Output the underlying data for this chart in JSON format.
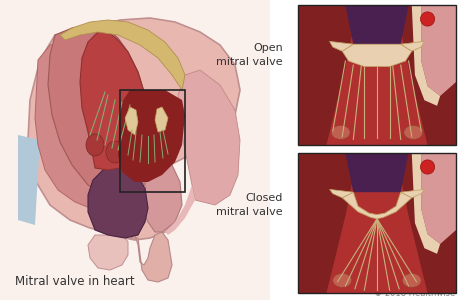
{
  "bg_color": "#ffffff",
  "title_main": "Mitral valve in heart",
  "title_open": "Open\nmitral valve",
  "title_closed": "Closed\nmitral valve",
  "copyright": "© 2018 Healthwise",
  "title_fontsize": 8.5,
  "label_fontsize": 8,
  "copyright_fontsize": 6,
  "colors": {
    "white_bg": "#ffffff",
    "light_pink_bg": "#f5ddd8",
    "blue_strip": "#a8c0d0",
    "heart_outer_pink": "#e8b8b0",
    "heart_outer_edge": "#c09090",
    "heart_muscle_red": "#c85050",
    "heart_dark_red": "#8a2828",
    "atrium_purple": "#6a3a58",
    "atrium_dark": "#4a2240",
    "lv_red": "#b84040",
    "rv_pink": "#d49090",
    "cream_valve": "#e0c898",
    "cream_edge": "#c0a060",
    "chordae_tan": "#c8b078",
    "papillary_red": "#a83838",
    "sep_dark": "#7a2828",
    "box_border": "#222222",
    "text_dark": "#333333",
    "text_gray": "#888888",
    "panel_muscle": "#b03030",
    "panel_dark_muscle": "#802020",
    "panel_purple": "#4a2050",
    "panel_cream_lumen": "#e8d0b0",
    "panel_pink_right": "#d88888",
    "panel_light_pink": "#e8b0b0",
    "dot_red": "#cc2222",
    "green_chordae": "#8aaa70"
  }
}
